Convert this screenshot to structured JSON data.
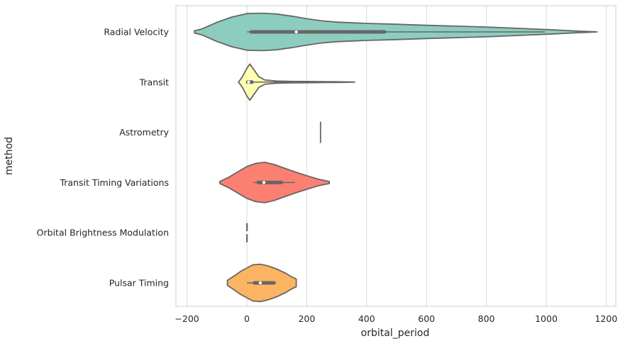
{
  "chart_data": {
    "type": "violin",
    "orientation": "horizontal",
    "xlabel": "orbital_period",
    "ylabel": "method",
    "xlim": [
      -240,
      1230
    ],
    "xticks": [
      -200,
      0,
      200,
      400,
      600,
      800,
      1000,
      1200
    ],
    "grid": "vertical",
    "categories": [
      "Radial Velocity",
      "Transit",
      "Astrometry",
      "Transit Timing Variations",
      "Orbital Brightness Modulation",
      "Pulsar Timing"
    ],
    "colors": [
      "#8dcdc0",
      "#ffffb3",
      "#bebada",
      "#fb8072",
      "#80b1d3",
      "#fdb462"
    ],
    "series": [
      {
        "category": "Radial Velocity",
        "min": 0.7,
        "q1": 15,
        "median": 165,
        "q3": 460,
        "max": 995,
        "kde_x": [
          -175,
          -150,
          -100,
          -50,
          0,
          50,
          100,
          150,
          200,
          250,
          300,
          400,
          500,
          600,
          700,
          800,
          900,
          1000,
          1050,
          1100,
          1140,
          1170
        ],
        "kde_width": [
          0.05,
          0.14,
          0.45,
          0.7,
          0.86,
          0.88,
          0.84,
          0.74,
          0.62,
          0.52,
          0.46,
          0.4,
          0.36,
          0.31,
          0.27,
          0.23,
          0.17,
          0.11,
          0.08,
          0.04,
          0.02,
          0.0
        ]
      },
      {
        "category": "Transit",
        "min": 0.36,
        "q1": 2.5,
        "median": 5.7,
        "q3": 17,
        "max": 360,
        "kde_x": [
          -28,
          -15,
          0,
          10,
          25,
          40,
          60,
          100,
          150,
          200,
          260,
          300,
          360
        ],
        "kde_width": [
          0.0,
          0.25,
          0.65,
          0.85,
          0.55,
          0.25,
          0.1,
          0.05,
          0.035,
          0.03,
          0.02,
          0.015,
          0.0
        ]
      },
      {
        "category": "Astrometry",
        "min": 246,
        "q1": 246,
        "median": 246,
        "q3": 246,
        "max": 246,
        "line_extent": 0.5
      },
      {
        "category": "Transit Timing Variations",
        "min": 22,
        "q1": 38,
        "median": 57,
        "q3": 115,
        "max": 160,
        "kde_x": [
          -90,
          -60,
          -30,
          0,
          30,
          60,
          90,
          120,
          160,
          200,
          240,
          275
        ],
        "kde_width": [
          0.05,
          0.25,
          0.5,
          0.75,
          0.9,
          0.95,
          0.85,
          0.7,
          0.5,
          0.32,
          0.15,
          0.05
        ]
      },
      {
        "category": "Orbital Brightness Modulation",
        "min": 0.24,
        "q1": 0.34,
        "median": 0.34,
        "q3": 1.54,
        "max": 1.54,
        "line_extent": 0.45
      },
      {
        "category": "Pulsar Timing",
        "min": 0.1,
        "q1": 25,
        "median": 45,
        "q3": 90,
        "max": 98,
        "kde_x": [
          -65,
          -40,
          -20,
          0,
          20,
          45,
          70,
          100,
          130,
          150,
          165
        ],
        "kde_width": [
          0.12,
          0.35,
          0.55,
          0.7,
          0.85,
          0.88,
          0.8,
          0.65,
          0.45,
          0.28,
          0.18
        ]
      }
    ]
  }
}
